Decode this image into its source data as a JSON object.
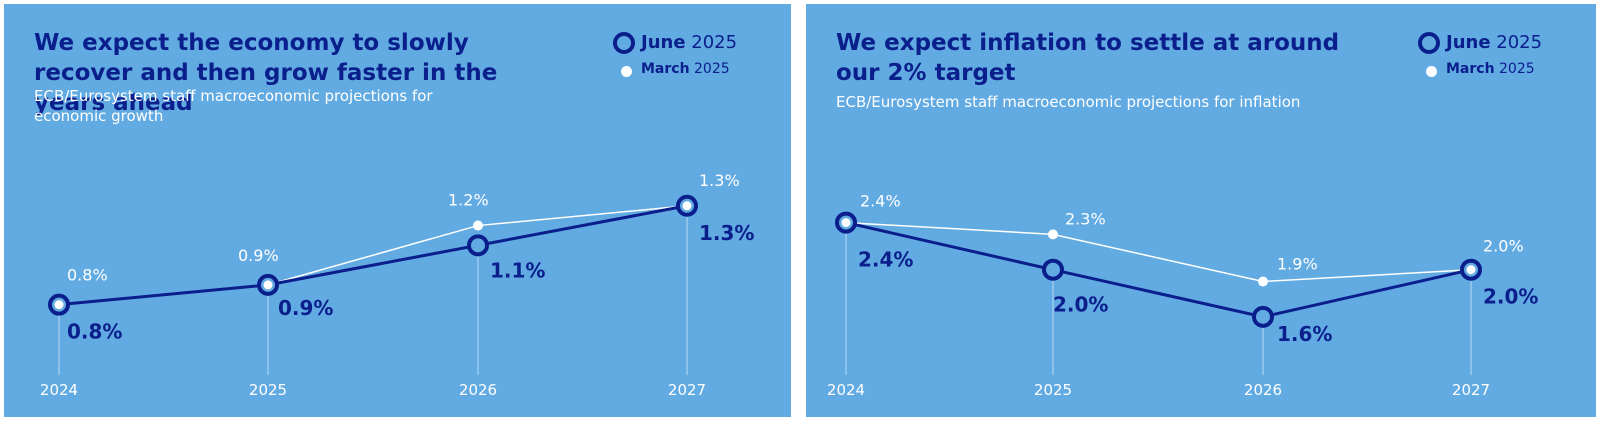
{
  "legend": {
    "june_month": "June",
    "june_year": "2025",
    "march_month": "March",
    "march_year": "2025"
  },
  "colors": {
    "panel_background": "#62aae2",
    "june_series": "#0a1e8c",
    "march_series": "#ffffff"
  },
  "chart_data": [
    {
      "type": "line",
      "title": "We expect the economy to slowly recover and then grow faster in the years ahead",
      "subtitle": "ECB/Eurosystem staff macroeconomic projections for economic growth",
      "categories": [
        "2024",
        "2025",
        "2026",
        "2027"
      ],
      "series": [
        {
          "name": "June 2025",
          "values": [
            0.8,
            0.9,
            1.1,
            1.3
          ],
          "labels": [
            "0.8%",
            "0.9%",
            "1.1%",
            "1.3%"
          ]
        },
        {
          "name": "March 2025",
          "values": [
            0.8,
            0.9,
            1.2,
            1.3
          ],
          "labels": [
            "0.8%",
            "0.9%",
            "1.2%",
            "1.3%"
          ]
        }
      ],
      "ylim": [
        0.5,
        1.4
      ],
      "grid": false,
      "legend_position": "top-right"
    },
    {
      "type": "line",
      "title": "We expect inflation to settle at around our 2% target",
      "subtitle": "ECB/Eurosystem staff macroeconomic projections for inflation",
      "categories": [
        "2024",
        "2025",
        "2026",
        "2027"
      ],
      "series": [
        {
          "name": "June 2025",
          "values": [
            2.4,
            2.0,
            1.6,
            2.0
          ],
          "labels": [
            "2.4%",
            "2.0%",
            "1.6%",
            "2.0%"
          ]
        },
        {
          "name": "March 2025",
          "values": [
            2.4,
            2.3,
            1.9,
            2.0
          ],
          "labels": [
            "2.4%",
            "2.3%",
            "1.9%",
            "2.0%"
          ]
        }
      ],
      "ylim": [
        1.2,
        2.6
      ],
      "grid": false,
      "legend_position": "top-right"
    }
  ]
}
